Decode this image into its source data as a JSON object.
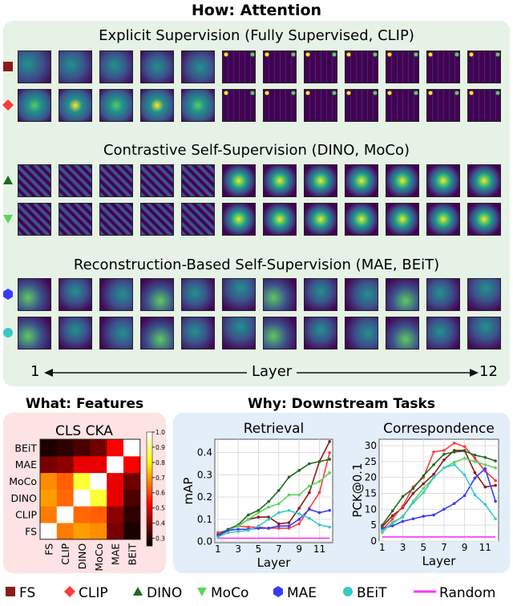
{
  "title_how": "How: Attention",
  "groups": [
    "Explicit Supervision (Fully Supervised, CLIP)",
    "Contrastive Self-Supervision (DINO, MoCo)",
    "Reconstruction-Based Self-Supervision (MAE, BEiT)"
  ],
  "layer_axis": {
    "start": "1",
    "label": "Layer",
    "end": "12"
  },
  "title_what": "What: Features",
  "title_why": "Why: Downstream Tasks",
  "colors": {
    "FS": "#8b1a1a",
    "CLIP": "#ff3b3b",
    "DINO": "#1e6b1e",
    "MoCo": "#5fd35f",
    "MAE": "#3a3aff",
    "BEiT": "#3cc8c8",
    "Random": "#ff33ff"
  },
  "legend": [
    {
      "key": "FS",
      "label": "FS",
      "marker": "square"
    },
    {
      "key": "CLIP",
      "label": "CLIP",
      "marker": "diamond"
    },
    {
      "key": "DINO",
      "label": "DINO",
      "marker": "triangle-up"
    },
    {
      "key": "MoCo",
      "label": "MoCo",
      "marker": "triangle-down"
    },
    {
      "key": "MAE",
      "label": "MAE",
      "marker": "hexagon"
    },
    {
      "key": "BEiT",
      "label": "BEiT",
      "marker": "circle"
    },
    {
      "key": "Random",
      "label": "Random",
      "marker": "line"
    }
  ],
  "chart_data": [
    {
      "type": "heatmap",
      "title": "CLS CKA",
      "labels": [
        "FS",
        "CLIP",
        "DINO",
        "MoCo",
        "MAE",
        "BEiT"
      ],
      "matrix": [
        [
          1,
          0.66,
          0.7,
          0.68,
          0.38,
          0.28
        ],
        [
          0.66,
          1,
          0.64,
          0.63,
          0.4,
          0.3
        ],
        [
          0.7,
          0.64,
          1,
          0.85,
          0.5,
          0.33
        ],
        [
          0.68,
          0.63,
          0.85,
          1,
          0.5,
          0.37
        ],
        [
          0.38,
          0.4,
          0.5,
          0.5,
          1,
          0.52
        ],
        [
          0.28,
          0.3,
          0.33,
          0.37,
          0.52,
          1
        ]
      ],
      "colorbar": {
        "range": [
          0.25,
          1.0
        ],
        "ticks": [
          "0.3",
          "0.4",
          "0.5",
          "0.6",
          "0.7",
          "0.8",
          "0.9",
          "1.0"
        ]
      }
    },
    {
      "type": "line",
      "title": "Retrieval",
      "xlabel": "Layer",
      "ylabel": "mAP",
      "xlim": [
        0.7,
        12.3
      ],
      "ylim": [
        -0.005,
        0.46
      ],
      "xticks": [
        "1",
        "3",
        "5",
        "7",
        "9",
        "11"
      ],
      "yticks": [
        "0.0",
        "0.1",
        "0.2",
        "0.3",
        "0.4"
      ],
      "x": [
        1,
        2,
        3,
        4,
        5,
        6,
        7,
        8,
        9,
        10,
        11,
        12
      ],
      "series": [
        {
          "name": "FS",
          "values": [
            0.03,
            0.05,
            0.07,
            0.1,
            0.11,
            0.11,
            0.08,
            0.085,
            0.15,
            0.22,
            0.36,
            0.45
          ]
        },
        {
          "name": "CLIP",
          "values": [
            0.04,
            0.05,
            0.07,
            0.065,
            0.065,
            0.06,
            0.06,
            0.06,
            0.08,
            0.15,
            0.22,
            0.4
          ]
        },
        {
          "name": "DINO",
          "values": [
            0.03,
            0.055,
            0.075,
            0.12,
            0.14,
            0.18,
            0.23,
            0.29,
            0.32,
            0.35,
            0.36,
            0.37
          ]
        },
        {
          "name": "MoCo",
          "values": [
            0.025,
            0.05,
            0.07,
            0.1,
            0.13,
            0.155,
            0.17,
            0.21,
            0.21,
            0.25,
            0.27,
            0.31
          ]
        },
        {
          "name": "MAE",
          "values": [
            0.025,
            0.05,
            0.055,
            0.055,
            0.06,
            0.06,
            0.07,
            0.07,
            0.1,
            0.145,
            0.13,
            0.14
          ]
        },
        {
          "name": "BEiT",
          "values": [
            0.02,
            0.04,
            0.045,
            0.05,
            0.07,
            0.1,
            0.13,
            0.14,
            0.125,
            0.105,
            0.075,
            0.065
          ]
        },
        {
          "name": "Random",
          "values": [
            0.015,
            0.015,
            0.015,
            0.015,
            0.015,
            0.015,
            0.015,
            0.015,
            0.015,
            0.015,
            0.015,
            0.015
          ]
        }
      ]
    },
    {
      "type": "line",
      "title": "Correspondence",
      "xlabel": "Layer",
      "ylabel": "PCK@0.1",
      "xlim": [
        0.7,
        12.3
      ],
      "ylim": [
        0,
        32
      ],
      "xticks": [
        "1",
        "3",
        "5",
        "7",
        "9",
        "11"
      ],
      "yticks": [
        "0",
        "5",
        "10",
        "15",
        "20",
        "25",
        "30"
      ],
      "x": [
        1,
        2,
        3,
        4,
        5,
        6,
        7,
        8,
        9,
        10,
        11,
        12
      ],
      "series": [
        {
          "name": "FS",
          "values": [
            4.5,
            8,
            10.5,
            15,
            18,
            21,
            25.5,
            28.5,
            28.5,
            21.5,
            17,
            17.5
          ]
        },
        {
          "name": "CLIP",
          "values": [
            3.5,
            7,
            11,
            17,
            20,
            28,
            28.5,
            30.8,
            29.7,
            26,
            22,
            19
          ]
        },
        {
          "name": "DINO",
          "values": [
            5,
            9.5,
            14,
            16.5,
            20.5,
            24,
            27.3,
            28,
            28.3,
            27,
            26.3,
            25.2
          ]
        },
        {
          "name": "MoCo",
          "values": [
            2.7,
            6,
            7.5,
            12.5,
            16.5,
            20,
            23,
            24.8,
            26,
            25,
            24,
            23
          ]
        },
        {
          "name": "MAE",
          "values": [
            4,
            4.8,
            6.2,
            7,
            7.8,
            8.2,
            10,
            11.8,
            14.3,
            19.8,
            22.8,
            12.5
          ]
        },
        {
          "name": "BEiT",
          "values": [
            3.3,
            5.5,
            7.8,
            12,
            15.2,
            20,
            23,
            24,
            20.8,
            14.5,
            11.5,
            7
          ]
        },
        {
          "name": "Random",
          "values": [
            1.3,
            1.3,
            1.3,
            1.3,
            1.3,
            1.3,
            1.3,
            1.3,
            1.3,
            1.3,
            1.3,
            1.3
          ]
        }
      ]
    }
  ]
}
